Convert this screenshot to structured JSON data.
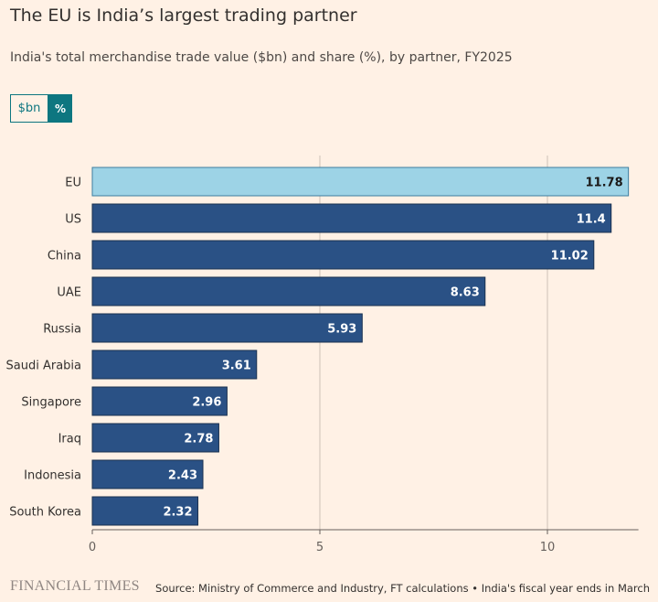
{
  "header": {
    "title": "The EU is India’s largest trading partner",
    "subtitle": "India's total merchandise trade value ($bn) and share (%), by partner, FY2025"
  },
  "toggle": {
    "options": [
      "$bn",
      "%"
    ],
    "selected": "%"
  },
  "colors": {
    "background": "#fff1e5",
    "bar": "#2a5185",
    "highlight": "#9dd3e6",
    "toggle_accent": "#0d7680"
  },
  "chart_data": {
    "type": "bar",
    "orientation": "horizontal",
    "categories": [
      "EU",
      "US",
      "China",
      "UAE",
      "Russia",
      "Saudi Arabia",
      "Singapore",
      "Iraq",
      "Indonesia",
      "South Korea"
    ],
    "values": [
      11.78,
      11.4,
      11.02,
      8.63,
      5.93,
      3.61,
      2.96,
      2.78,
      2.43,
      2.32
    ],
    "value_labels": [
      "11.78",
      "11.4",
      "11.02",
      "8.63",
      "5.93",
      "3.61",
      "2.96",
      "2.78",
      "2.43",
      "2.32"
    ],
    "highlighted_category": "EU",
    "xlim": [
      0,
      12
    ],
    "xticks": [
      0,
      5,
      10
    ],
    "grid": true
  },
  "footer": {
    "brand": "FINANCIAL TIMES",
    "source": "Source: Ministry of Commerce and Industry, FT calculations • India's fiscal year ends in March"
  }
}
